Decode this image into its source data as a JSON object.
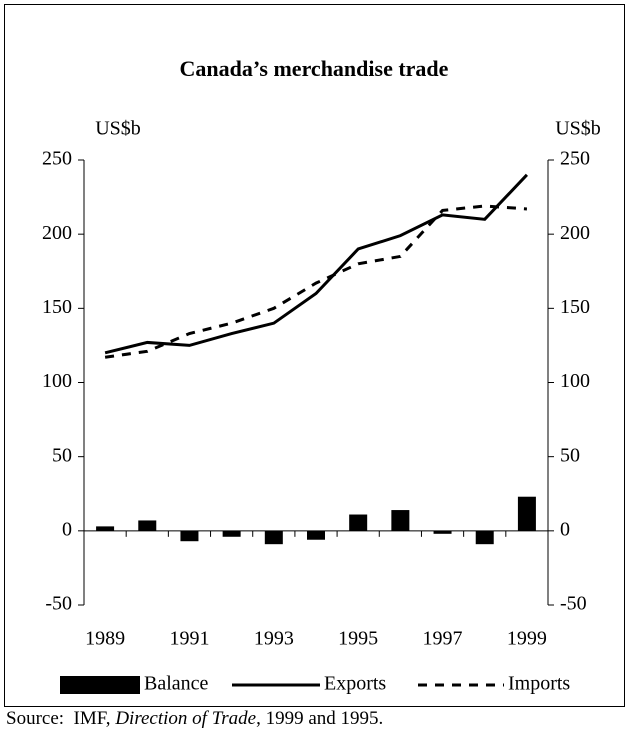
{
  "chart_data": {
    "type": "line",
    "title": "Canada’s merchandise trade",
    "y_label": "US$b",
    "y2_label": "US$b",
    "categories": [
      "1989",
      null,
      "1991",
      null,
      "1993",
      null,
      "1995",
      null,
      "1997",
      null,
      "1999"
    ],
    "series": [
      {
        "name": "Balance",
        "type": "bar",
        "color": "#000000",
        "values": [
          3,
          7,
          -7,
          -4,
          -9,
          -6,
          11,
          14,
          -2,
          -9,
          23
        ]
      },
      {
        "name": "Exports",
        "type": "line",
        "style": "solid",
        "color": "#000000",
        "values": [
          120,
          127,
          125,
          133,
          140,
          160,
          190,
          199,
          213,
          210,
          240
        ]
      },
      {
        "name": "Imports",
        "type": "line",
        "style": "dashed",
        "color": "#000000",
        "values": [
          117,
          121,
          133,
          140,
          150,
          167,
          180,
          185,
          216,
          219,
          217
        ]
      }
    ],
    "ylim": [
      -50,
      250
    ],
    "yticks": [
      -50,
      0,
      50,
      100,
      150,
      200,
      250
    ],
    "y2lim": [
      -50,
      250
    ],
    "y2ticks": [
      -50,
      0,
      50,
      100,
      150,
      200,
      250
    ],
    "legend": "bottom",
    "source": {
      "prefix": "Source:  IMF, ",
      "title": "Direction of Trade",
      "suffix": ", 1999 and 1995."
    }
  }
}
